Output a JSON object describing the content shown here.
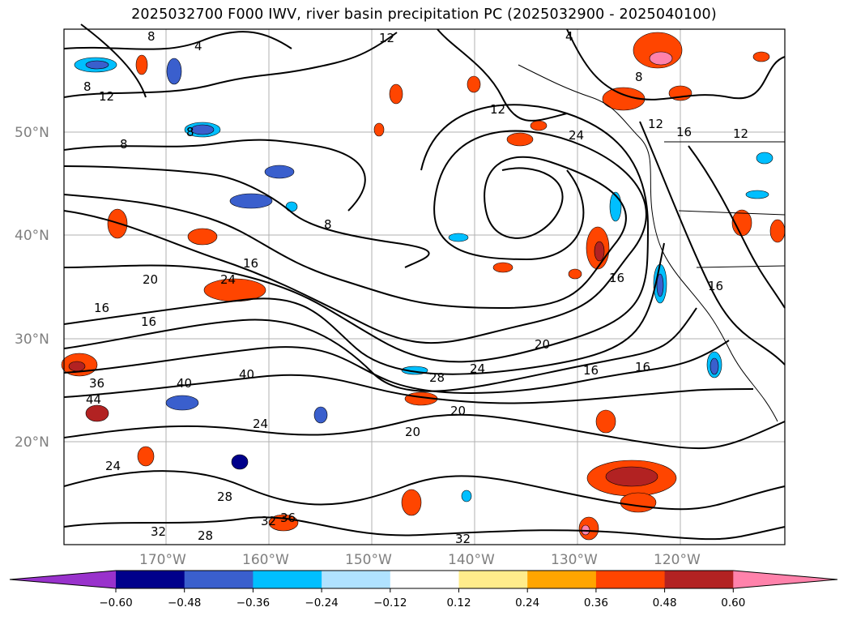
{
  "title": "2025032700 F000 IWV, river basin precipitation PC (2025032900 - 2025040100)",
  "lat_labels": [
    "50°N",
    "40°N",
    "30°N",
    "20°N"
  ],
  "lon_labels": [
    "170°W",
    "160°W",
    "150°W",
    "140°W",
    "130°W",
    "120°W"
  ],
  "colorbar": {
    "ticks": [
      "−0.60",
      "−0.48",
      "−0.36",
      "−0.24",
      "−0.12",
      "0.12",
      "0.24",
      "0.36",
      "0.48",
      "0.60"
    ],
    "colors": [
      "#9932cc",
      "#00008b",
      "#3a5fcd",
      "#00bfff",
      "#b0e2ff",
      "#ffffff",
      "#ffec8b",
      "#ffa500",
      "#ff4500",
      "#b22222",
      "#ff82ab"
    ]
  },
  "contour_labels": [
    "8",
    "4",
    "12",
    "4",
    "8",
    "12",
    "8",
    "8",
    "8",
    "12",
    "24",
    "12",
    "16",
    "12",
    "8",
    "16",
    "20",
    "16",
    "24",
    "16",
    "36",
    "40",
    "40",
    "44",
    "28",
    "24",
    "20",
    "16",
    "24",
    "24",
    "20",
    "28",
    "32",
    "36",
    "28",
    "32",
    "16",
    "32",
    "20",
    "16",
    "16"
  ]
}
